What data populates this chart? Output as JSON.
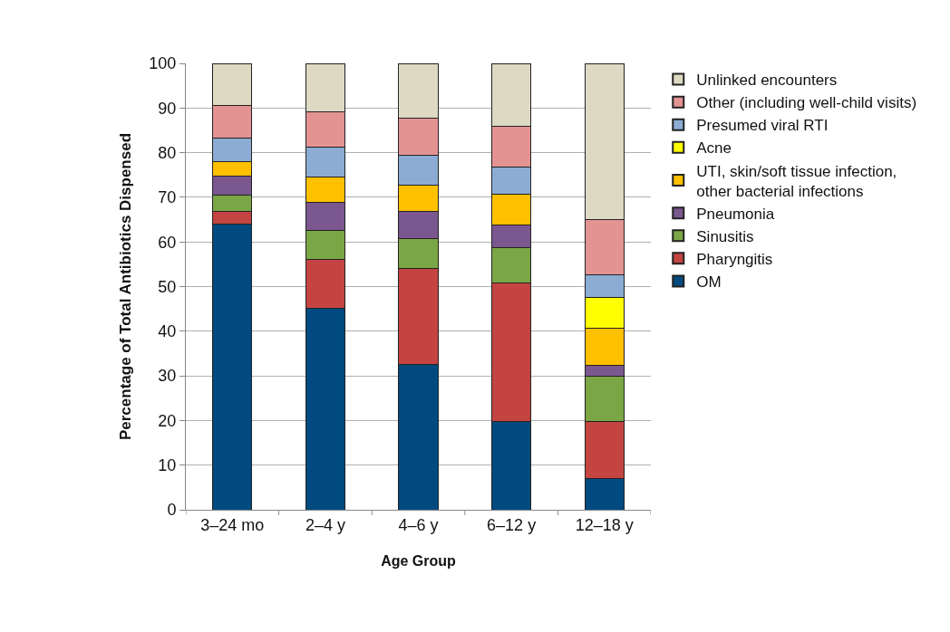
{
  "chart_data": {
    "type": "bar",
    "stacked": true,
    "xlabel": "Age Group",
    "ylabel": "Percentage of Total Antibiotics Dispensed",
    "categories": [
      "3–24 mo",
      "2–4 y",
      "4–6 y",
      "6–12 y",
      "12–18 y"
    ],
    "ylim": [
      0,
      100
    ],
    "yticks": [
      0,
      10,
      20,
      30,
      40,
      50,
      60,
      70,
      80,
      90,
      100
    ],
    "grid": "y",
    "legend": "right",
    "series": [
      {
        "name": "OM",
        "color": "#004a80",
        "values": [
          64,
          45.2,
          32.6,
          19.8,
          7.1
        ]
      },
      {
        "name": "Pharyngitis",
        "color": "#c44442",
        "values": [
          2.8,
          10.8,
          21.4,
          31.0,
          12.7
        ]
      },
      {
        "name": "Sinusitis",
        "color": "#7ba646",
        "values": [
          3.6,
          6.5,
          6.7,
          8.0,
          10.1
        ]
      },
      {
        "name": "Pneumonia",
        "color": "#7b578f",
        "values": [
          4.3,
          6.3,
          6.1,
          5.0,
          2.4
        ]
      },
      {
        "name": "UTI, skin/soft tissue infection, other bacterial infections",
        "color": "#ffc000",
        "values": [
          3.3,
          5.7,
          5.9,
          6.9,
          8.3
        ]
      },
      {
        "name": "Acne",
        "color": "#ffff00",
        "values": [
          0,
          0,
          0,
          0,
          6.9
        ]
      },
      {
        "name": "Presumed viral RTI",
        "color": "#8cacd3",
        "values": [
          5.2,
          6.7,
          6.8,
          6.0,
          5.1
        ]
      },
      {
        "name": "Other (including well-child visits)",
        "color": "#e49393",
        "values": [
          7.4,
          7.9,
          8.3,
          9.3,
          12.4
        ]
      },
      {
        "name": "Unlinked encounters",
        "color": "#ddd9c3",
        "values": [
          9.4,
          10.9,
          12.2,
          14.0,
          35.0
        ]
      }
    ]
  }
}
